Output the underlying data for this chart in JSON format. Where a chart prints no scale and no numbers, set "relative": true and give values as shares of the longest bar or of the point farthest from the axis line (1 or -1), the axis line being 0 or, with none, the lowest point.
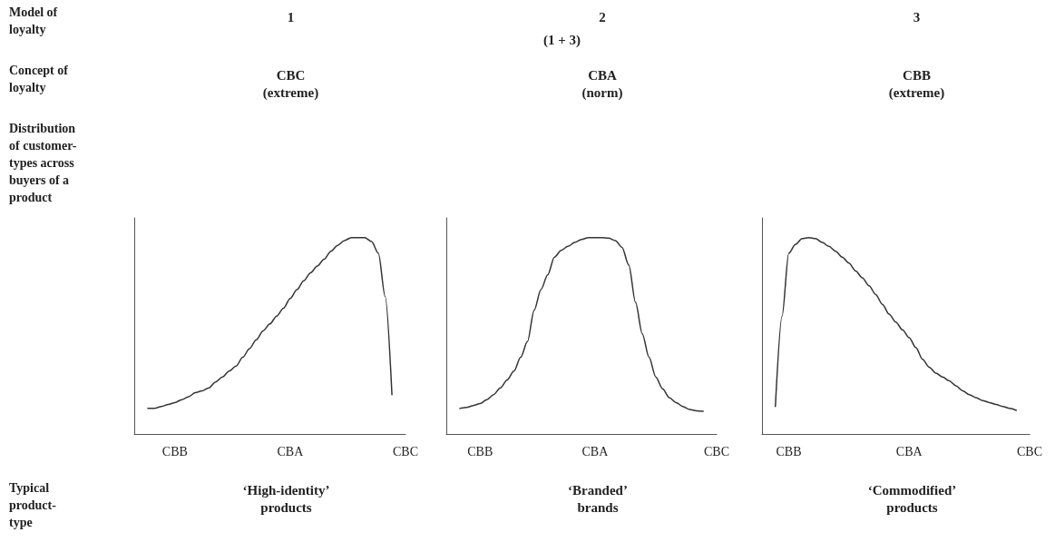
{
  "chart_data": [
    {
      "type": "other",
      "annotations": [
        "Model of\nloyalty",
        "Concept of\nloyalty",
        "Distribution\nof customer-\ntypes across\nbuyers of a\nproduct",
        "Typical\nproduct-\ntype"
      ]
    },
    {
      "type": "line",
      "title": "1",
      "subtitle": "CBC\n(extreme)",
      "xlabel": "‘High-identity’\nproducts",
      "relative": true,
      "marker": "none",
      "line_style": "solid",
      "categories": [
        null,
        null,
        null,
        null,
        null,
        null,
        "CBB",
        null,
        null,
        null,
        null,
        null,
        null,
        null,
        null,
        null,
        null,
        null,
        null,
        null,
        null,
        null,
        null,
        "CBA",
        null,
        null,
        null,
        null,
        null,
        null,
        null,
        null,
        null,
        null,
        null,
        null,
        null,
        null,
        null,
        null,
        "CBC"
      ],
      "series": [
        {
          "color": "#333333",
          "values": [
            null,
            null,
            0.13,
            0.13,
            0.14,
            0.15,
            0.16,
            0.175,
            0.19,
            0.21,
            0.22,
            0.235,
            0.265,
            0.29,
            0.32,
            0.345,
            0.39,
            0.435,
            0.48,
            0.525,
            0.56,
            0.6,
            0.64,
            0.69,
            0.735,
            0.78,
            0.82,
            0.855,
            0.89,
            0.93,
            0.96,
            0.985,
            1,
            1,
            1,
            0.98,
            0.92,
            0.7,
            0.2,
            null,
            null
          ]
        }
      ]
    },
    {
      "type": "line",
      "title": "2",
      "subtitle": "CBA\n(norm)",
      "xlabel": "‘Branded’\nbrands",
      "annotations": [
        "(1 + 3)"
      ],
      "relative": true,
      "marker": "none",
      "line_style": "solid",
      "categories": [
        null,
        null,
        null,
        null,
        null,
        "CBB",
        null,
        null,
        null,
        null,
        null,
        null,
        null,
        null,
        null,
        null,
        null,
        null,
        null,
        null,
        null,
        null,
        "CBA",
        null,
        null,
        null,
        null,
        null,
        null,
        null,
        null,
        null,
        null,
        null,
        null,
        null,
        null,
        null,
        null,
        null,
        "CBC"
      ],
      "series": [
        {
          "color": "#333333",
          "values": [
            null,
            null,
            0.13,
            0.135,
            0.145,
            0.155,
            0.175,
            0.2,
            0.235,
            0.275,
            0.32,
            0.39,
            0.47,
            0.63,
            0.735,
            0.81,
            0.9,
            0.935,
            0.955,
            0.975,
            0.99,
            1,
            1,
            1,
            0.997,
            0.985,
            0.95,
            0.86,
            0.67,
            0.51,
            0.39,
            0.29,
            0.23,
            0.185,
            0.16,
            0.14,
            0.125,
            0.118,
            0.115,
            null,
            null
          ]
        }
      ]
    },
    {
      "type": "line",
      "title": "3",
      "subtitle": "CBB\n(extreme)",
      "xlabel": "‘Commodified’\nproducts",
      "relative": true,
      "marker": "none",
      "line_style": "solid",
      "categories": [
        null,
        null,
        null,
        null,
        "CBB",
        null,
        null,
        null,
        null,
        null,
        null,
        null,
        null,
        null,
        null,
        null,
        null,
        null,
        null,
        null,
        null,
        null,
        "CBA",
        null,
        null,
        null,
        null,
        null,
        null,
        null,
        null,
        null,
        null,
        null,
        null,
        null,
        null,
        null,
        null,
        null,
        "CBC"
      ],
      "series": [
        {
          "color": "#333333",
          "values": [
            null,
            null,
            0.14,
            0.6,
            0.92,
            0.965,
            0.995,
            1,
            0.995,
            0.975,
            0.955,
            0.93,
            0.9,
            0.87,
            0.83,
            0.795,
            0.755,
            0.71,
            0.66,
            0.61,
            0.57,
            0.53,
            0.49,
            0.44,
            0.38,
            0.34,
            0.31,
            0.29,
            0.27,
            0.245,
            0.22,
            0.2,
            0.185,
            0.17,
            0.16,
            0.15,
            0.14,
            0.13,
            0.12,
            null,
            null
          ]
        }
      ]
    }
  ]
}
